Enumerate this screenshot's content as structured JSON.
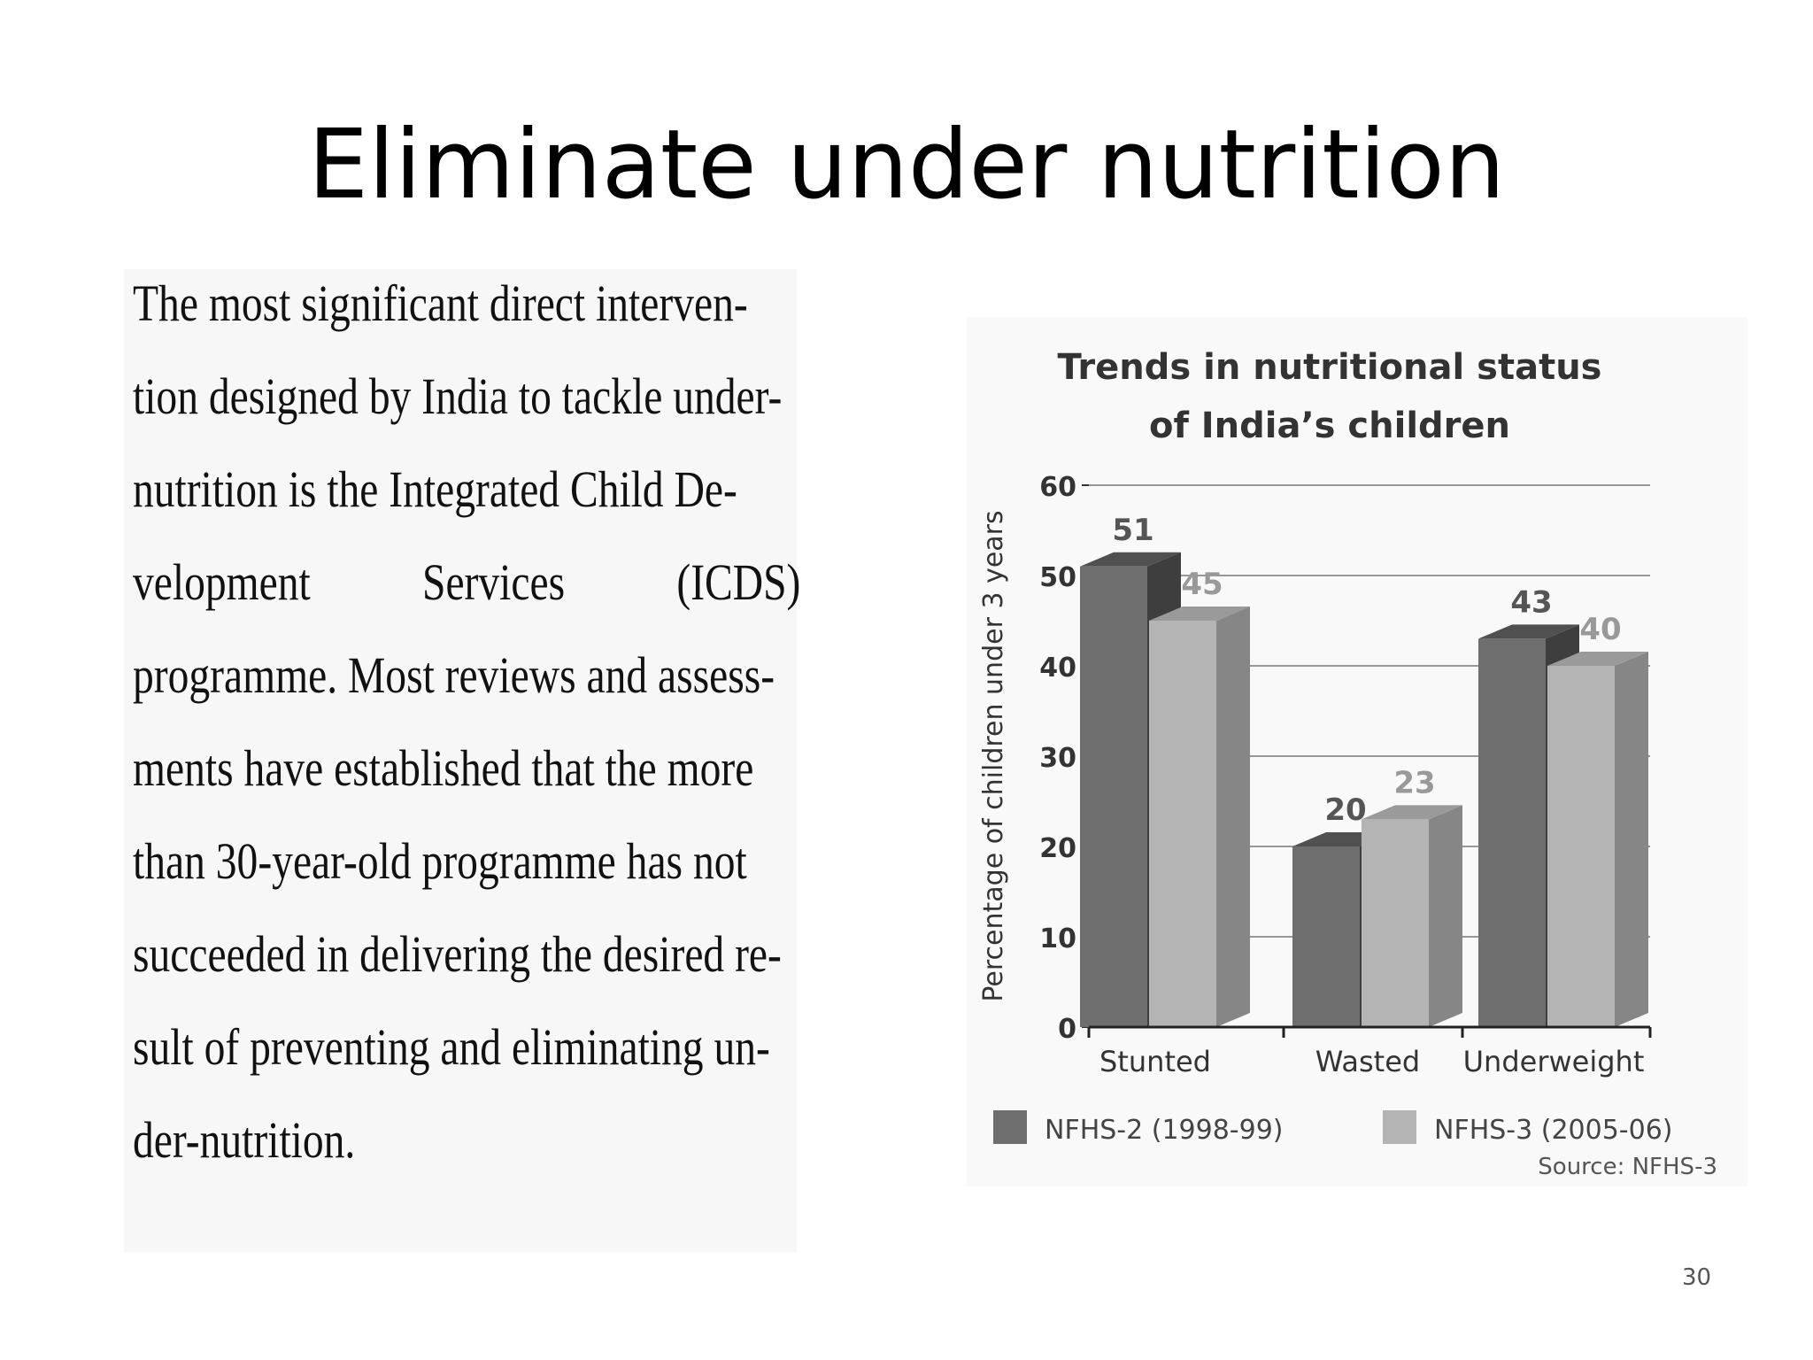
{
  "slide": {
    "title": "Eliminate under nutrition",
    "page_number": "30"
  },
  "body_text": {
    "lines": [
      "The most significant direct interven-",
      "tion designed by India to tackle under-",
      "nutrition is the Integrated Child De-",
      [
        "velopment",
        "Services",
        "(ICDS)"
      ],
      "programme. Most reviews and assess-",
      "ments have established that the more",
      "than 30-year-old programme has not",
      "succeeded in delivering the desired re-",
      "sult of preventing and eliminating un-",
      "der-nutrition."
    ]
  },
  "chart_data": {
    "type": "bar",
    "title_lines": [
      "Trends in nutritional status",
      "of India’s children"
    ],
    "ylabel": "Percentage of children under 3 years",
    "xlabel": "",
    "ylim": [
      0,
      60
    ],
    "yticks": [
      "0",
      "10",
      "20",
      "30",
      "40",
      "50",
      "60"
    ],
    "grid": true,
    "categories": [
      "Stunted",
      "Wasted",
      "Underweight"
    ],
    "series": [
      {
        "name": "NFHS-2 (1998-99)",
        "values": [
          51,
          20,
          43
        ],
        "color": "#6e6e6e"
      },
      {
        "name": "NFHS-3 (2005-06)",
        "values": [
          45,
          23,
          40
        ],
        "color": "#b4b4b4"
      }
    ],
    "data_labels": [
      [
        "51",
        "20",
        "43"
      ],
      [
        "45",
        "23",
        "40"
      ]
    ],
    "legend_position": "bottom",
    "source": "Source: NFHS-3"
  }
}
